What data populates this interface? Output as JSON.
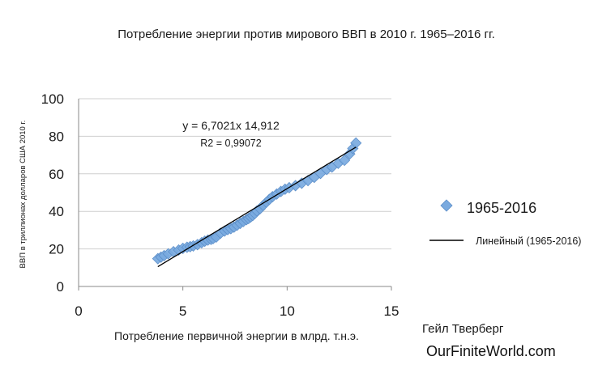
{
  "chart_data": {
    "type": "scatter",
    "title": "Потребление энергии против мирового ВВП в 2010 г. 1965–2016 гг.",
    "xlabel": "Потребление первичной энергии в млрд. т.н.э.",
    "ylabel": "ВВП в триллионах долларов США 2010 г.",
    "xlim": [
      0,
      15
    ],
    "ylim": [
      0,
      100
    ],
    "x_ticks": [
      "0",
      "5",
      "10",
      "15"
    ],
    "y_ticks": [
      "0",
      "20",
      "40",
      "60",
      "80",
      "100"
    ],
    "grid": "horizontal",
    "legend_position": "right",
    "series": [
      {
        "name": "1965-2016",
        "marker": "diamond",
        "color": "#7aaadf",
        "points": [
          [
            3.8,
            14.8
          ],
          [
            3.95,
            15.6
          ],
          [
            4.1,
            16.4
          ],
          [
            4.3,
            17.4
          ],
          [
            4.55,
            18.5
          ],
          [
            4.8,
            19.4
          ],
          [
            5.0,
            20.3
          ],
          [
            5.2,
            20.9
          ],
          [
            5.35,
            21.2
          ],
          [
            5.5,
            21.6
          ],
          [
            5.7,
            22.3
          ],
          [
            5.9,
            23.3
          ],
          [
            6.05,
            24.1
          ],
          [
            6.2,
            24.7
          ],
          [
            6.35,
            25.1
          ],
          [
            6.45,
            25.5
          ],
          [
            6.6,
            26.3
          ],
          [
            6.8,
            28.3
          ],
          [
            7.0,
            29.5
          ],
          [
            7.15,
            30.3
          ],
          [
            7.3,
            30.8
          ],
          [
            7.45,
            31.6
          ],
          [
            7.6,
            32.6
          ],
          [
            7.75,
            33.6
          ],
          [
            7.9,
            34.6
          ],
          [
            8.05,
            35.6
          ],
          [
            8.15,
            36.2
          ],
          [
            8.25,
            37.0
          ],
          [
            8.35,
            37.8
          ],
          [
            8.45,
            38.8
          ],
          [
            8.55,
            40.2
          ],
          [
            8.7,
            41.4
          ],
          [
            8.85,
            43.2
          ],
          [
            9.0,
            44.8
          ],
          [
            9.15,
            46.4
          ],
          [
            9.3,
            47.8
          ],
          [
            9.5,
            49.2
          ],
          [
            9.7,
            50.6
          ],
          [
            9.9,
            51.8
          ],
          [
            10.1,
            52.6
          ],
          [
            10.4,
            53.7
          ],
          [
            10.7,
            55.0
          ],
          [
            11.0,
            56.4
          ],
          [
            11.3,
            58.1
          ],
          [
            11.6,
            60.2
          ],
          [
            11.9,
            62.3
          ],
          [
            12.15,
            63.6
          ],
          [
            12.45,
            65.6
          ],
          [
            12.75,
            67.2
          ],
          [
            13.0,
            70.6
          ],
          [
            13.15,
            73.5
          ],
          [
            13.3,
            76.4
          ]
        ]
      }
    ],
    "trendline": {
      "name": "Линейный (1965-2016)",
      "equation": "y = 6,7021x 14,912",
      "r2": "R2 = 0,99072",
      "slope": 6.7021,
      "intercept": -14.912,
      "x_range": [
        3.8,
        13.3
      ],
      "color": "#000000"
    }
  },
  "credits": {
    "author": "Гейл Тверберг",
    "site": "OurFiniteWorld.com"
  }
}
